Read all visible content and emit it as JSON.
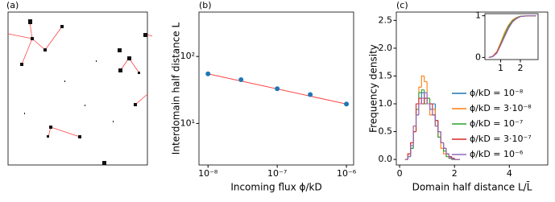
{
  "image_panel": {
    "label": "(a)"
  },
  "chart_data": [
    {
      "type": "line",
      "title": "(b)",
      "xlabel": "Incoming flux ϕ/kD",
      "ylabel": "Interdomain half distance L",
      "xscale": "log",
      "yscale": "log",
      "x": [
        1e-08,
        3e-08,
        1e-07,
        3e-07,
        1e-06
      ],
      "series": [
        {
          "color": "#1f77b4",
          "values": [
            55,
            45,
            33,
            27,
            19.5
          ]
        }
      ],
      "fit_line": {
        "color": "#ff4444",
        "x": [
          1e-08,
          1e-06
        ],
        "values": [
          55,
          19.5
        ]
      },
      "xlim": [
        7.4e-09,
        1.27e-06
      ],
      "ylim": [
        2.4,
        460
      ],
      "xticks": [
        {
          "value": 1e-08,
          "label": "10⁻⁸"
        },
        {
          "value": 1e-07,
          "label": "10⁻⁷"
        },
        {
          "value": 1e-06,
          "label": "10⁻⁶"
        }
      ],
      "yticks": [
        {
          "value": 10,
          "label": "10¹"
        },
        {
          "value": 100,
          "label": "10²"
        }
      ]
    },
    {
      "type": "histogram",
      "title": "(c)",
      "xlabel": "Domain half distance L/L̄",
      "ylabel": "Frequency density",
      "bins": [
        0.2,
        0.3,
        0.4,
        0.5,
        0.6,
        0.7,
        0.8,
        0.9,
        1.0,
        1.1,
        1.2,
        1.3,
        1.4,
        1.5,
        1.6,
        1.7,
        1.8,
        1.9,
        2.0,
        2.1,
        2.2
      ],
      "series": [
        {
          "name": "ϕ/kD = 10⁻⁸",
          "color": "#1f77b4",
          "values": [
            0,
            0.05,
            0.2,
            0.5,
            0.8,
            1.0,
            1.2,
            1.1,
            1.0,
            0.9,
            1.0,
            0.7,
            0.5,
            0.3,
            0.2,
            0.1,
            0.05,
            0.02,
            0,
            0
          ]
        },
        {
          "name": "ϕ/kD = 3·10⁻⁸",
          "color": "#ff7f0e",
          "values": [
            0,
            0.1,
            0.3,
            0.6,
            0.9,
            1.3,
            1.5,
            1.4,
            1.1,
            0.8,
            0.9,
            0.6,
            0.4,
            0.2,
            0.1,
            0.05,
            0.02,
            0,
            0,
            0
          ]
        },
        {
          "name": "ϕ/kD = 10⁻⁷",
          "color": "#2ca02c",
          "values": [
            0,
            0.05,
            0.2,
            0.5,
            0.9,
            1.2,
            1.25,
            1.0,
            1.1,
            0.9,
            0.8,
            0.6,
            0.4,
            0.3,
            0.15,
            0.05,
            0.02,
            0,
            0,
            0
          ]
        },
        {
          "name": "ϕ/kD = 3·10⁻⁷",
          "color": "#d62728",
          "values": [
            0,
            0.1,
            0.3,
            0.5,
            1.0,
            1.1,
            1.0,
            1.1,
            1.0,
            1.0,
            0.8,
            0.7,
            0.5,
            0.3,
            0.2,
            0.1,
            0.05,
            0.02,
            0,
            0
          ]
        },
        {
          "name": "ϕ/kD = 10⁻⁶",
          "color": "#9467bd",
          "values": [
            0,
            0.05,
            0.25,
            0.6,
            0.8,
            1.0,
            1.1,
            1.2,
            1.0,
            0.9,
            0.8,
            0.6,
            0.5,
            0.3,
            0.2,
            0.1,
            0.03,
            0.01,
            0,
            0
          ]
        }
      ],
      "legend": "right",
      "xlim": [
        -0.12,
        5.4
      ],
      "ylim": [
        -0.1,
        2.65
      ],
      "xticks": [
        0,
        2,
        4
      ],
      "yticks": [
        {
          "value": 0,
          "label": "0.0"
        },
        {
          "value": 0.5,
          "label": "0.5"
        },
        {
          "value": 1,
          "label": "1.0"
        },
        {
          "value": 1.5,
          "label": "1.5"
        },
        {
          "value": 2,
          "label": "2.0"
        },
        {
          "value": 2.5,
          "label": "2.5"
        }
      ]
    },
    {
      "type": "inset",
      "x": [
        0.4,
        0.6,
        0.8,
        1.0,
        1.2,
        1.4,
        1.6,
        1.8,
        2.0,
        2.4,
        2.8
      ],
      "series": [
        {
          "color": "#1f77b4",
          "values": [
            0,
            0.02,
            0.1,
            0.3,
            0.52,
            0.72,
            0.86,
            0.94,
            0.98,
            1,
            1
          ]
        },
        {
          "color": "#ff7f0e",
          "values": [
            0,
            0.03,
            0.14,
            0.36,
            0.6,
            0.78,
            0.9,
            0.96,
            0.99,
            1,
            1
          ]
        },
        {
          "color": "#2ca02c",
          "values": [
            0,
            0.02,
            0.11,
            0.32,
            0.55,
            0.75,
            0.88,
            0.95,
            0.99,
            1,
            1
          ]
        },
        {
          "color": "#d62728",
          "values": [
            0,
            0.03,
            0.12,
            0.3,
            0.5,
            0.7,
            0.85,
            0.93,
            0.98,
            1,
            1
          ]
        },
        {
          "color": "#9467bd",
          "values": [
            0,
            0.02,
            0.1,
            0.29,
            0.5,
            0.7,
            0.85,
            0.94,
            0.98,
            1,
            1
          ]
        }
      ],
      "xlim": [
        0.2,
        2.9
      ],
      "ylim": [
        -0.05,
        1.05
      ],
      "xticks": [
        1,
        2
      ],
      "yticks": [
        0,
        1
      ]
    }
  ]
}
